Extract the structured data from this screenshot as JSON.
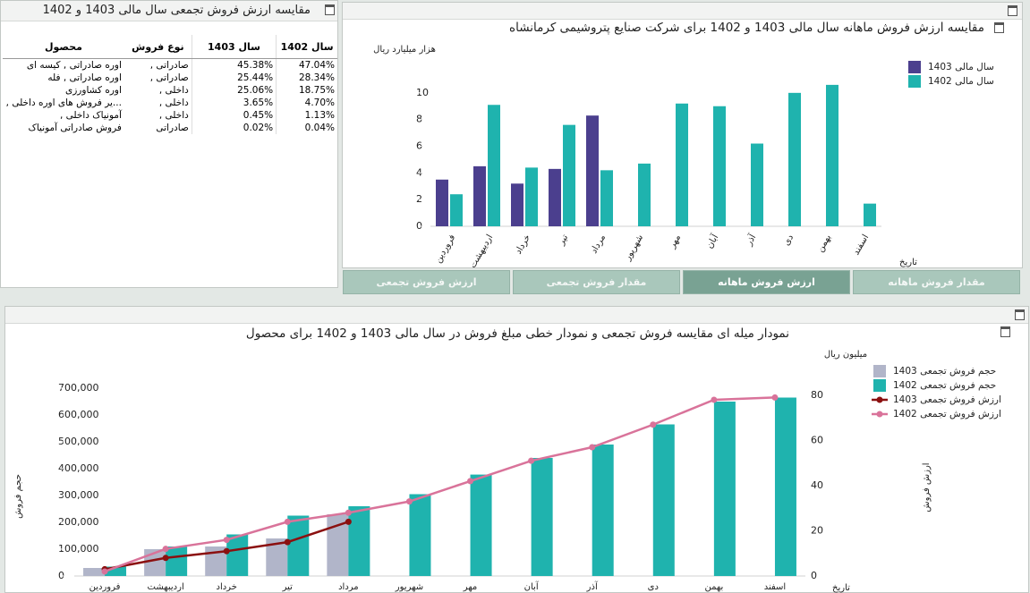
{
  "table_panel": {
    "title": "مقایسه ارزش فروش تجمعی سال مالی 1403 و 1402",
    "headers": [
      "محصول",
      "نوع فروش",
      "سال 1403",
      "سال 1402"
    ],
    "rows": [
      [
        "اوره صادراتی , کیسه ای",
        "صادراتی ,",
        "45.38%",
        "47.04%"
      ],
      [
        "اوره صادراتی , فله",
        "صادراتی ,",
        "25.44%",
        "28.34%"
      ],
      [
        "اوره کشاورزی",
        "داخلی ,",
        "25.06%",
        "18.75%"
      ],
      [
        "...یر فروش های اوره داخلی ,",
        "داخلی ,",
        "3.65%",
        "4.70%"
      ],
      [
        "آمونیاک داخلی ,",
        "داخلی ,",
        "0.45%",
        "1.13%"
      ],
      [
        "فروش صادراتی آمونیاک",
        "صادراتی",
        "0.02%",
        "0.04%"
      ]
    ]
  },
  "tabs": [
    "ارزش فروش تجمعی",
    "مقدار فروش تجمعی",
    "ارزش فروش ماهانه",
    "مقدار فروش ماهانه"
  ],
  "active_tab": 2,
  "chart_data": [
    {
      "type": "bar",
      "title": "مقایسه ارزش فروش ماهانه سال مالی 1403 و 1402 برای شرکت صنایع پتروشیمی کرمانشاه",
      "y_label": "هزار میلیارد ریال",
      "x_label": "تاریخ",
      "categories": [
        "فروردین",
        "اردیبهشت",
        "خرداد",
        "تیر",
        "مرداد",
        "شهریور",
        "مهر",
        "آبان",
        "آذر",
        "دی",
        "بهمن",
        "اسفند"
      ],
      "series": [
        {
          "name": "سال مالی 1403",
          "color": "#4b3f8e",
          "values": [
            3.5,
            4.5,
            3.2,
            4.3,
            8.3,
            null,
            null,
            null,
            null,
            null,
            null,
            null
          ]
        },
        {
          "name": "سال مالی 1402",
          "color": "#1fb3ae",
          "values": [
            2.4,
            9.1,
            4.4,
            7.6,
            4.2,
            4.7,
            9.2,
            9.0,
            6.2,
            10.0,
            10.6,
            1.7
          ]
        }
      ],
      "ylim": [
        0,
        12
      ],
      "yticks": [
        0,
        2,
        4,
        6,
        8,
        10
      ],
      "grid": false,
      "legend": "top-right"
    },
    {
      "type": "combo",
      "title": "نمودار میله ای مقایسه فروش تجمعی و نمودار خطی مبلغ فروش در سال مالی 1403 و 1402 برای محصول",
      "y_label": "حجم فروش",
      "y2_label": "ارزش فروش",
      "y2_unit": "میلیون ریال",
      "x_label": "تاریخ",
      "categories": [
        "فروردین",
        "اردیبهشت",
        "خرداد",
        "تیر",
        "مرداد",
        "شهریور",
        "مهر",
        "آبان",
        "آذر",
        "دی",
        "بهمن",
        "اسفند"
      ],
      "series": [
        {
          "name": "حجم فروش تجمعی 1403",
          "kind": "bar",
          "color": "#b1b5c9",
          "values": [
            30000,
            100000,
            110000,
            140000,
            230000,
            null,
            null,
            null,
            null,
            null,
            null,
            null
          ]
        },
        {
          "name": "حجم فروش تجمعی 1402",
          "kind": "bar",
          "color": "#1fb3ae",
          "values": [
            35000,
            110000,
            155000,
            225000,
            260000,
            305000,
            378000,
            440000,
            490000,
            565000,
            650000,
            665000
          ]
        },
        {
          "name": "ارزش فروش تجمعی 1403",
          "kind": "line",
          "axis": "y2",
          "color": "#8b1010",
          "values": [
            3,
            8,
            11,
            15,
            24,
            null,
            null,
            null,
            null,
            null,
            null,
            null
          ]
        },
        {
          "name": "ارزش فروش تجمعی 1402",
          "kind": "line",
          "axis": "y2",
          "color": "#d9739a",
          "values": [
            2,
            12,
            16,
            24,
            28,
            33,
            42,
            51,
            57,
            67,
            78,
            79
          ]
        }
      ],
      "ylim": [
        0,
        800000
      ],
      "yticks": [
        0,
        {
          "value": 100000,
          "label": "100,000"
        },
        {
          "value": 200000,
          "label": "200,000"
        },
        {
          "value": 300000,
          "label": "300,000"
        },
        {
          "value": 400000,
          "label": "400,000"
        },
        {
          "value": 500000,
          "label": "500,000"
        },
        {
          "value": 600000,
          "label": "600,000"
        },
        {
          "value": 700000,
          "label": "700,000"
        }
      ],
      "y2lim": [
        0,
        95
      ],
      "y2ticks": [
        0,
        20,
        40,
        60,
        80
      ],
      "grid": false,
      "legend": "top-right"
    }
  ]
}
